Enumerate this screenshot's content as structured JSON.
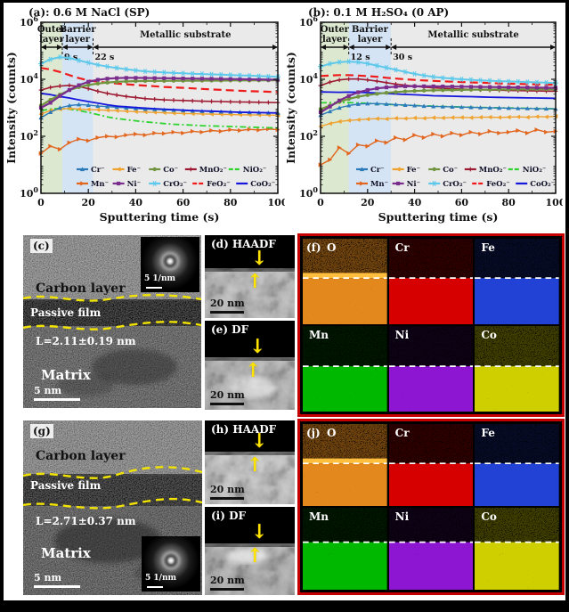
{
  "chart_data": [
    {
      "type": "line",
      "title": "(a): 0.6 M NaCl (SP)",
      "xlabel": "Sputtering time (s)",
      "ylabel": "Intensity (counts)",
      "xlim": [
        0,
        100
      ],
      "ylog": true,
      "ylim": [
        1,
        1000000
      ],
      "xticks": [
        0,
        20,
        40,
        60,
        80,
        100
      ],
      "ytick_exponents": [
        0,
        2,
        4,
        6
      ],
      "legend_position": "inside-bottom",
      "regions": [
        {
          "lines": [
            "Outer",
            "layer"
          ],
          "from": 0,
          "to": 9,
          "color": "#dce9d0"
        },
        {
          "lines": [
            "Barrier",
            "layer"
          ],
          "from": 9,
          "to": 22,
          "color": "#d5e4f4"
        },
        {
          "lines": [
            "Metallic substrate"
          ],
          "from": 22,
          "to": 100,
          "color": "#eaeaea"
        }
      ],
      "boundaries": [
        {
          "t": 9,
          "label": "9 s"
        },
        {
          "t": 22,
          "label": "22 s"
        }
      ],
      "x": [
        0,
        4,
        8,
        12,
        16,
        20,
        24,
        28,
        32,
        36,
        40,
        44,
        48,
        52,
        56,
        60,
        64,
        68,
        72,
        76,
        80,
        84,
        88,
        92,
        96,
        100
      ],
      "series": [
        {
          "name": "Cr⁻",
          "color": "#2b7bba",
          "marker": "triangle",
          "dash": "",
          "width": 1.4,
          "z": 4,
          "values": [
            450,
            700,
            1000,
            1200,
            1300,
            1250,
            1150,
            1100,
            1050,
            1000,
            950,
            900,
            880,
            850,
            830,
            800,
            780,
            760,
            750,
            730,
            720,
            700,
            690,
            680,
            670,
            660
          ]
        },
        {
          "name": "Fe⁻",
          "color": "#f0a22e",
          "marker": "tleft",
          "dash": "",
          "width": 1.4,
          "z": 3,
          "values": [
            600,
            800,
            900,
            950,
            900,
            870,
            850,
            820,
            790,
            760,
            730,
            710,
            690,
            670,
            650,
            630,
            620,
            610,
            600,
            590,
            580,
            570,
            565,
            560,
            555,
            550
          ]
        },
        {
          "name": "Co⁻",
          "color": "#71953e",
          "marker": "circle",
          "dash": "",
          "width": 2.2,
          "z": 8,
          "values": [
            1200,
            1900,
            2900,
            4200,
            5300,
            6300,
            7100,
            7700,
            8100,
            8400,
            8600,
            8700,
            8800,
            8800,
            8900,
            8900,
            8900,
            9000,
            9000,
            9000,
            9100,
            9100,
            9100,
            9200,
            9200,
            9200
          ]
        },
        {
          "name": "MnO₂⁻",
          "color": "#9e1b32",
          "marker": "plus",
          "dash": "",
          "width": 1.6,
          "z": 6,
          "values": [
            4200,
            5200,
            5800,
            6100,
            5600,
            4700,
            3800,
            3200,
            2800,
            2500,
            2300,
            2100,
            2000,
            1900,
            1850,
            1800,
            1750,
            1700,
            1680,
            1650,
            1620,
            1600,
            1580,
            1560,
            1540,
            1520
          ]
        },
        {
          "name": "NiO₂⁻",
          "color": "#2fd32f",
          "marker": "none",
          "dash": "7 3 2 3",
          "width": 1.8,
          "z": 2,
          "values": [
            800,
            900,
            950,
            900,
            800,
            690,
            580,
            480,
            420,
            380,
            350,
            320,
            300,
            280,
            265,
            255,
            245,
            235,
            230,
            225,
            220,
            215,
            210,
            205,
            200,
            195
          ]
        },
        {
          "name": "Mn⁻",
          "color": "#e2661e",
          "marker": "tright",
          "dash": "",
          "width": 1.4,
          "z": 1,
          "values": [
            25,
            45,
            35,
            60,
            80,
            70,
            90,
            100,
            95,
            110,
            120,
            110,
            130,
            125,
            140,
            130,
            150,
            140,
            160,
            150,
            170,
            160,
            175,
            165,
            180,
            170
          ]
        },
        {
          "name": "Ni⁻",
          "color": "#7b2d8e",
          "marker": "square",
          "dash": "",
          "width": 2.2,
          "z": 9,
          "values": [
            1000,
            1500,
            2600,
            4200,
            6200,
            8200,
            9600,
            10500,
            11000,
            11200,
            11200,
            11100,
            11000,
            10900,
            10800,
            10700,
            10600,
            10500,
            10400,
            10300,
            10200,
            10100,
            10000,
            9900,
            9800,
            9700
          ]
        },
        {
          "name": "CrO₂⁻",
          "color": "#5ec9ea",
          "marker": "star",
          "dash": "",
          "width": 2.0,
          "z": 10,
          "values": [
            35000,
            50000,
            60000,
            56000,
            46000,
            38000,
            32000,
            28000,
            25000,
            22500,
            20500,
            19000,
            18000,
            17300,
            16700,
            16200,
            15700,
            15300,
            14900,
            14500,
            14100,
            13700,
            13400,
            13000,
            12600,
            12200
          ]
        },
        {
          "name": "FeO₂⁻",
          "color": "#ee1c1c",
          "marker": "none",
          "dash": "9 5",
          "width": 2.2,
          "z": 7,
          "values": [
            25000,
            22000,
            18000,
            14000,
            11000,
            9200,
            8200,
            7600,
            7100,
            6700,
            6300,
            6000,
            5700,
            5400,
            5200,
            5000,
            4800,
            4600,
            4400,
            4250,
            4100,
            3950,
            3850,
            3750,
            3650,
            3550
          ]
        },
        {
          "name": "CoO₂⁻",
          "color": "#1616dd",
          "marker": "none",
          "dash": "",
          "width": 1.8,
          "z": 5,
          "values": [
            3200,
            2900,
            2500,
            2200,
            1900,
            1650,
            1450,
            1280,
            1150,
            1080,
            1020,
            970,
            930,
            890,
            860,
            830,
            800,
            780,
            760,
            740,
            720,
            700,
            690,
            680,
            670,
            660
          ]
        }
      ]
    },
    {
      "type": "line",
      "title": "(b): 0.1 M H₂SO₄ (0 AP)",
      "xlabel": "Sputtering time (s)",
      "ylabel": "Intensity (counts)",
      "xlim": [
        0,
        100
      ],
      "ylog": true,
      "ylim": [
        1,
        1000000
      ],
      "xticks": [
        0,
        20,
        40,
        60,
        80,
        100
      ],
      "ytick_exponents": [
        0,
        2,
        4,
        6
      ],
      "legend_position": "inside-bottom",
      "regions": [
        {
          "lines": [
            "Outer",
            "layer"
          ],
          "from": 0,
          "to": 12,
          "color": "#dce9d0"
        },
        {
          "lines": [
            "Barrier",
            "layer"
          ],
          "from": 12,
          "to": 30,
          "color": "#d5e4f4"
        },
        {
          "lines": [
            "Metallic substrate"
          ],
          "from": 30,
          "to": 100,
          "color": "#eaeaea"
        }
      ],
      "boundaries": [
        {
          "t": 12,
          "label": "12 s"
        },
        {
          "t": 30,
          "label": "30 s"
        }
      ],
      "x": [
        0,
        4,
        8,
        12,
        16,
        20,
        24,
        28,
        32,
        36,
        40,
        44,
        48,
        52,
        56,
        60,
        64,
        68,
        72,
        76,
        80,
        84,
        88,
        92,
        96,
        100
      ],
      "series": [
        {
          "name": "Cr⁻",
          "color": "#2b7bba",
          "marker": "triangle",
          "dash": "",
          "width": 1.4,
          "z": 4,
          "values": [
            550,
            750,
            1000,
            1200,
            1350,
            1400,
            1400,
            1350,
            1300,
            1250,
            1200,
            1150,
            1120,
            1100,
            1080,
            1060,
            1040,
            1020,
            1000,
            990,
            975,
            960,
            950,
            940,
            925,
            915
          ]
        },
        {
          "name": "Fe⁻",
          "color": "#f0a22e",
          "marker": "tleft",
          "dash": "",
          "width": 1.4,
          "z": 3,
          "values": [
            220,
            280,
            330,
            360,
            380,
            400,
            415,
            405,
            430,
            420,
            440,
            430,
            450,
            440,
            455,
            460,
            450,
            465,
            470,
            460,
            470,
            480,
            465,
            490,
            480,
            500
          ]
        },
        {
          "name": "Co⁻",
          "color": "#71953e",
          "marker": "circle",
          "dash": "",
          "width": 2.2,
          "z": 8,
          "values": [
            900,
            1200,
            1600,
            2050,
            2450,
            2800,
            3100,
            3350,
            3550,
            3750,
            3900,
            4000,
            4100,
            4150,
            4200,
            4250,
            4300,
            4350,
            4350,
            4400,
            4400,
            4450,
            4450,
            4500,
            4500,
            4500
          ]
        },
        {
          "name": "MnO₂⁻",
          "color": "#9e1b32",
          "marker": "plus",
          "dash": "",
          "width": 1.6,
          "z": 6,
          "values": [
            6000,
            8000,
            9500,
            10200,
            10200,
            9500,
            8600,
            7600,
            6800,
            6200,
            5700,
            5300,
            5000,
            4800,
            4650,
            4500,
            4400,
            4300,
            4200,
            4150,
            4050,
            4000,
            3950,
            3900,
            3850,
            3800
          ]
        },
        {
          "name": "NiO₂⁻",
          "color": "#2fd32f",
          "marker": "none",
          "dash": "7 3 2 3",
          "width": 1.8,
          "z": 2,
          "values": [
            1500,
            1520,
            1530,
            1520,
            1480,
            1430,
            1380,
            1330,
            1280,
            1240,
            1200,
            1170,
            1140,
            1110,
            1090,
            1070,
            1050,
            1030,
            1010,
            1000,
            985,
            970,
            955,
            945,
            930,
            920
          ]
        },
        {
          "name": "Mn⁻",
          "color": "#e2661e",
          "marker": "tright",
          "dash": "",
          "width": 1.4,
          "z": 1,
          "values": [
            10,
            15,
            40,
            25,
            50,
            45,
            70,
            60,
            90,
            75,
            110,
            90,
            120,
            100,
            130,
            110,
            140,
            120,
            150,
            130,
            140,
            160,
            130,
            170,
            140,
            150
          ]
        },
        {
          "name": "Ni⁻",
          "color": "#7b2d8e",
          "marker": "square",
          "dash": "",
          "width": 2.2,
          "z": 9,
          "values": [
            700,
            1100,
            1800,
            2600,
            3500,
            4200,
            4800,
            5200,
            5500,
            5650,
            5700,
            5700,
            5650,
            5600,
            5550,
            5500,
            5450,
            5400,
            5350,
            5300,
            5250,
            5200,
            5150,
            5100,
            5050,
            5000
          ]
        },
        {
          "name": "CrO₂⁻",
          "color": "#5ec9ea",
          "marker": "star",
          "dash": "",
          "width": 2.0,
          "z": 10,
          "values": [
            28000,
            35000,
            40000,
            42000,
            40000,
            35500,
            30000,
            25500,
            21500,
            18200,
            15500,
            13500,
            12200,
            11200,
            10500,
            10000,
            9600,
            9200,
            8900,
            8600,
            8400,
            8200,
            8000,
            7800,
            7600,
            7400
          ]
        },
        {
          "name": "FeO₂⁻",
          "color": "#ee1c1c",
          "marker": "none",
          "dash": "9 5",
          "width": 2.2,
          "z": 7,
          "values": [
            13000,
            13500,
            14000,
            14000,
            13500,
            13000,
            12200,
            11300,
            10600,
            10000,
            9500,
            9100,
            8800,
            8500,
            8250,
            8000,
            7800,
            7600,
            7400,
            7200,
            7050,
            6900,
            6750,
            6600,
            6500,
            6400
          ]
        },
        {
          "name": "CoO₂⁻",
          "color": "#1616dd",
          "marker": "none",
          "dash": "",
          "width": 1.8,
          "z": 5,
          "values": [
            3600,
            3550,
            3500,
            3550,
            3500,
            3400,
            3300,
            3200,
            3050,
            2950,
            2850,
            2750,
            2650,
            2600,
            2550,
            2500,
            2450,
            2400,
            2350,
            2320,
            2280,
            2250,
            2220,
            2200,
            2170,
            2150
          ]
        }
      ]
    }
  ],
  "panels": {
    "c": {
      "label": "(c)",
      "carbon": "Carbon layer",
      "film": "Passive film",
      "thickness": "L=2.11±0.19 nm",
      "matrix": "Matrix",
      "scale": "5 nm",
      "fft_scale": "5 1/nm"
    },
    "d": {
      "label": "(d) HAADF",
      "scale": "20 nm"
    },
    "e": {
      "label": "(e) DF",
      "scale": "20 nm"
    },
    "g": {
      "label": "(g)",
      "carbon": "Carbon layer",
      "film": "Passive film",
      "thickness": "L=2.71±0.37 nm",
      "matrix": "Matrix",
      "scale": "5 nm",
      "fft_scale": "5 1/nm"
    },
    "h": {
      "label": "(h) HAADF",
      "scale": "20 nm"
    },
    "i": {
      "label": "(i) DF",
      "scale": "20 nm"
    }
  },
  "eds": {
    "border_color": "#c40000",
    "labels": [
      "O",
      "Cr",
      "Fe",
      "Mn",
      "Ni",
      "Co"
    ],
    "colors": [
      "#e2881c",
      "#d60000",
      "#2143d6",
      "#00b800",
      "#8d12d2",
      "#cfcf00"
    ],
    "top_density": [
      0.5,
      0.22,
      0.18,
      0.12,
      0.1,
      0.3
    ],
    "panel_f": {
      "label": "(f)",
      "boundaries": [
        0.46,
        0.47
      ]
    },
    "panel_j": {
      "label": "(j)",
      "boundaries": [
        0.48,
        0.42
      ]
    }
  }
}
